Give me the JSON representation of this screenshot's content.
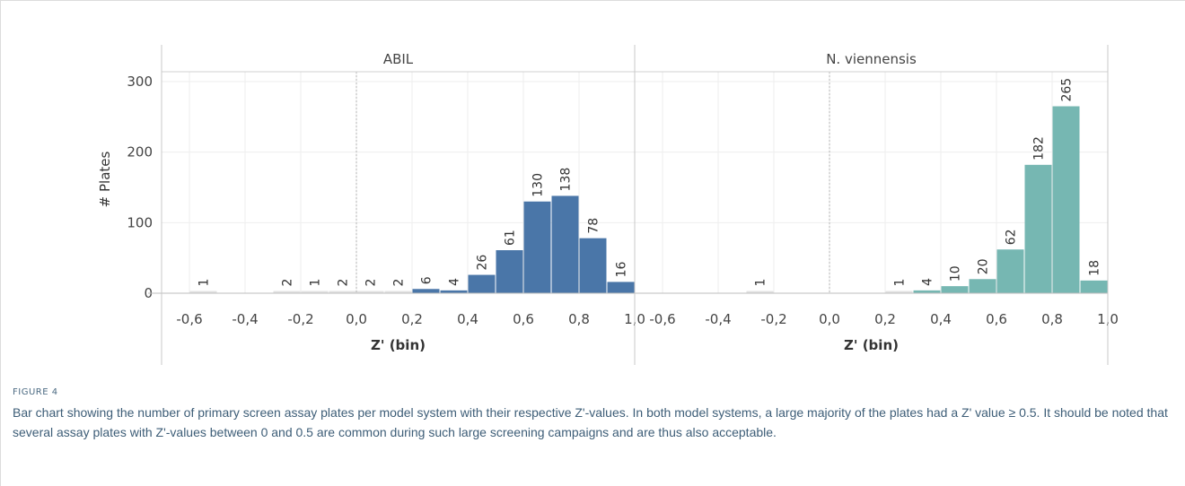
{
  "figure": {
    "label": "FIGURE 4",
    "caption": "Bar chart showing the number of primary screen assay plates per model system with their respective Z'-values. In both model systems, a large majority of the plates had a Z' value ≥ 0.5. It should be noted that several assay plates with Z'-values between 0 and 0.5 are common during such large screening campaigns and are thus also acceptable."
  },
  "colors": {
    "abil_bar": "#4a76a8",
    "nv_bar": "#76b7b2",
    "near_zero_bar": "#e2e2e2",
    "axis_text": "#444444",
    "grid": "#eeeeee"
  },
  "chart_data": {
    "type": "bar",
    "ylabel": "# Plates",
    "xlabel": "Z' (bin)",
    "ylim": [
      0,
      310
    ],
    "yticks": [
      0,
      100,
      200,
      300
    ],
    "xlim": [
      -0.7,
      1.0
    ],
    "xticks": [
      "-0,6",
      "-0,4",
      "-0,2",
      "0,0",
      "0,2",
      "0,4",
      "0,6",
      "0,8",
      "1,0"
    ],
    "xtick_values": [
      -0.6,
      -0.4,
      -0.2,
      0.0,
      0.2,
      0.4,
      0.6,
      0.8,
      1.0
    ],
    "bin_width": 0.1,
    "reference_line_x": 0.0,
    "grid": true,
    "panels": [
      {
        "name": "ABIL",
        "bins": [
          {
            "start": -0.6,
            "count": 1
          },
          {
            "start": -0.3,
            "count": 2
          },
          {
            "start": -0.2,
            "count": 1
          },
          {
            "start": -0.1,
            "count": 2
          },
          {
            "start": 0.0,
            "count": 2
          },
          {
            "start": 0.1,
            "count": 2
          },
          {
            "start": 0.2,
            "count": 6
          },
          {
            "start": 0.3,
            "count": 4
          },
          {
            "start": 0.4,
            "count": 26
          },
          {
            "start": 0.5,
            "count": 61
          },
          {
            "start": 0.6,
            "count": 130
          },
          {
            "start": 0.7,
            "count": 138
          },
          {
            "start": 0.8,
            "count": 78
          },
          {
            "start": 0.9,
            "count": 16
          }
        ]
      },
      {
        "name": "N. viennensis",
        "bins": [
          {
            "start": -0.3,
            "count": 1
          },
          {
            "start": 0.2,
            "count": 1
          },
          {
            "start": 0.3,
            "count": 4
          },
          {
            "start": 0.4,
            "count": 10
          },
          {
            "start": 0.5,
            "count": 20
          },
          {
            "start": 0.6,
            "count": 62
          },
          {
            "start": 0.7,
            "count": 182
          },
          {
            "start": 0.8,
            "count": 265
          },
          {
            "start": 0.9,
            "count": 18
          }
        ]
      }
    ]
  }
}
